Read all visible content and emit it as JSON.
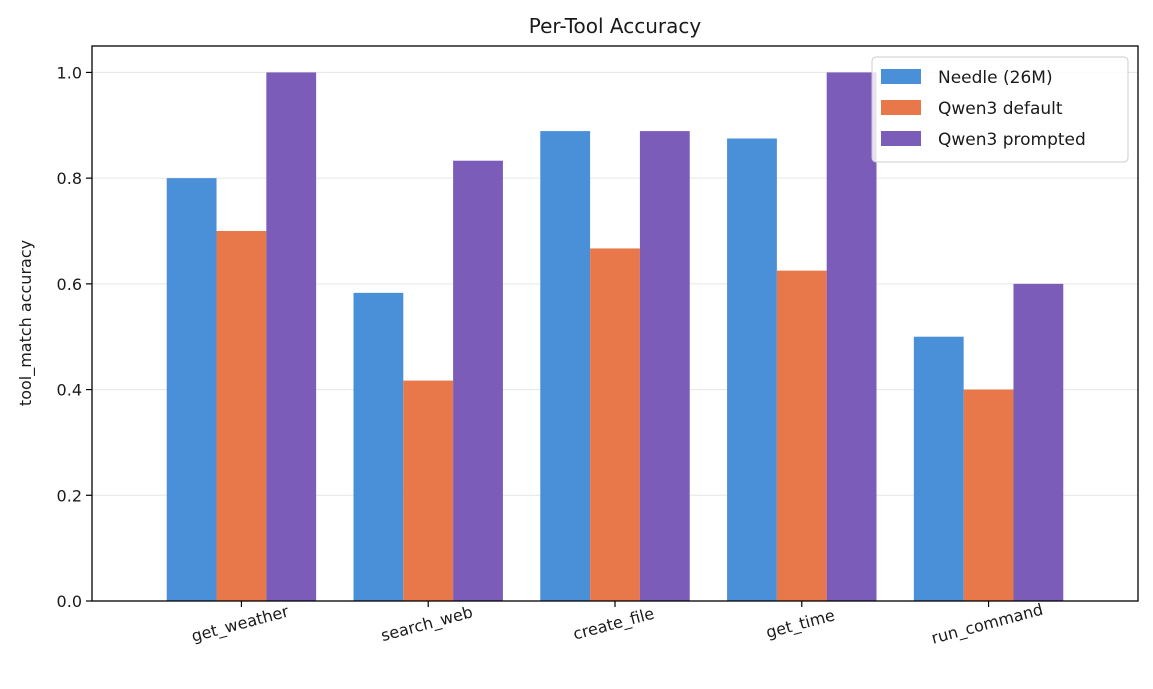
{
  "chart_data": {
    "type": "bar",
    "title": "Per-Tool Accuracy",
    "xlabel": "",
    "ylabel": "tool_match accuracy",
    "categories": [
      "get_weather",
      "search_web",
      "create_file",
      "get_time",
      "run_command"
    ],
    "series": [
      {
        "name": "Needle (26M)",
        "color": "#4a90d9",
        "values": [
          0.8,
          0.583,
          0.889,
          0.875,
          0.5
        ]
      },
      {
        "name": "Qwen3 default",
        "color": "#e8784a",
        "values": [
          0.7,
          0.417,
          0.667,
          0.625,
          0.4
        ]
      },
      {
        "name": "Qwen3 prompted",
        "color": "#7b5cb8",
        "values": [
          1.0,
          0.833,
          0.889,
          1.0,
          0.6
        ]
      }
    ],
    "ylim": [
      0,
      1.05
    ],
    "yticks": [
      "0.0",
      "0.2",
      "0.4",
      "0.6",
      "0.8",
      "1.0"
    ],
    "grid": "horizontal",
    "legend": "top-right"
  }
}
